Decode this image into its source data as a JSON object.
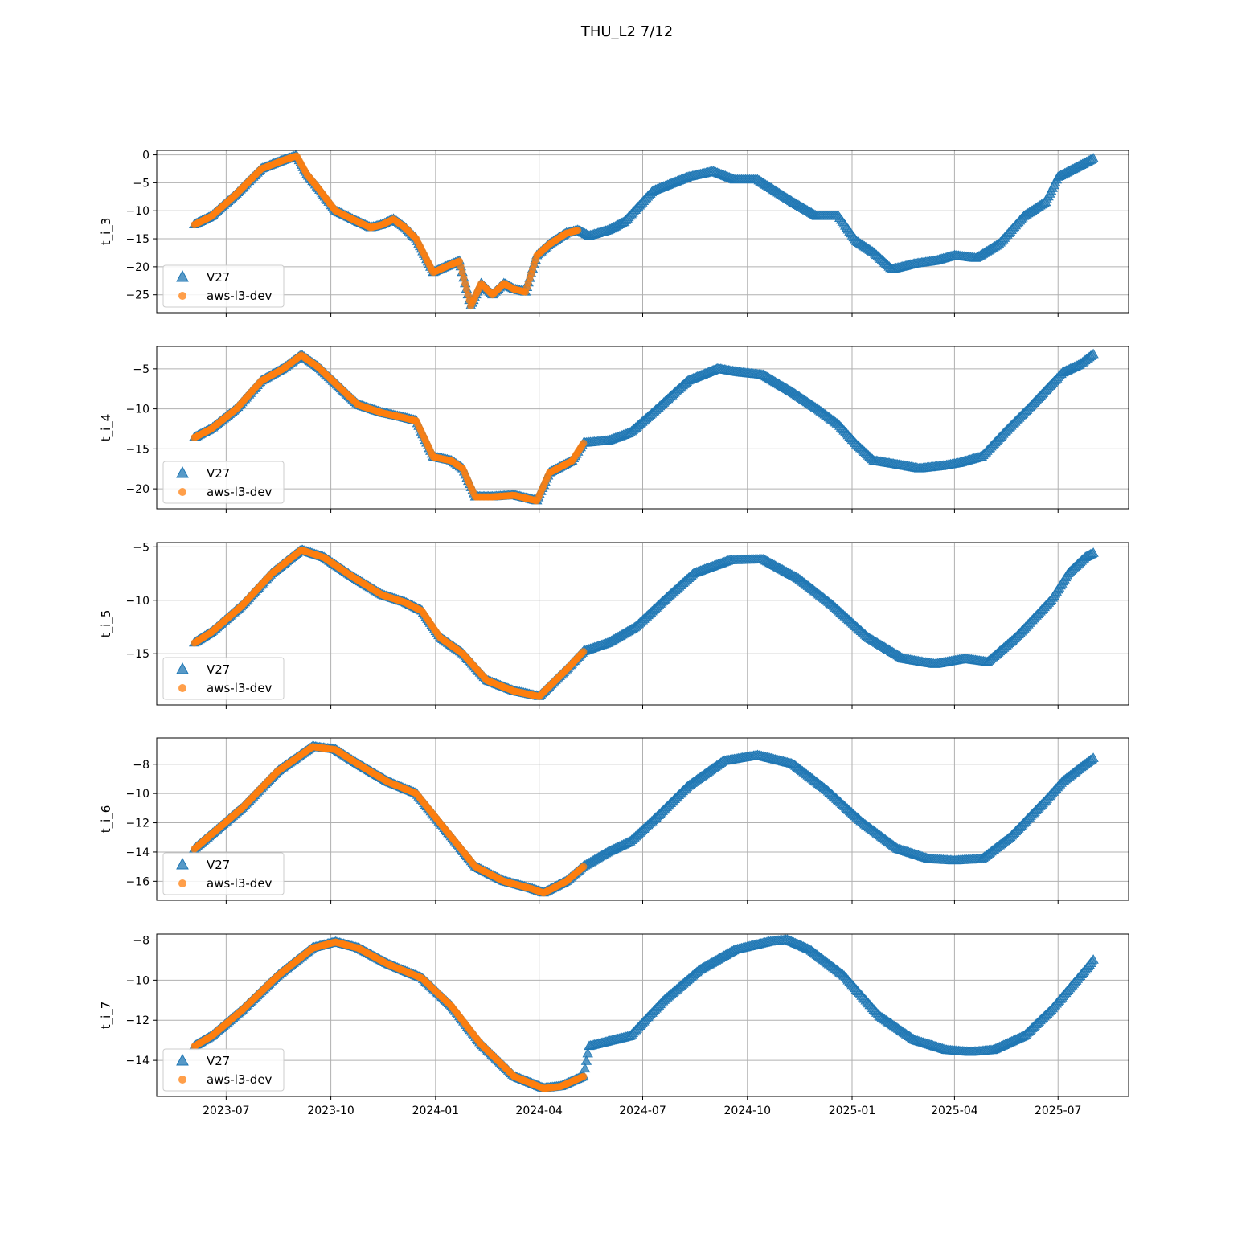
{
  "figure": {
    "title": "THU_L2 7/12"
  },
  "colors": {
    "v27": "#1f77b4",
    "aws": "#ff7f0e"
  },
  "chart_data": {
    "type": "scatter",
    "shared_x": {
      "start": "2023-05-01",
      "end": "2025-09-01",
      "tick_labels": [
        "2023-07",
        "2023-10",
        "2024-01",
        "2024-04",
        "2024-07",
        "2024-10",
        "2025-01",
        "2025-04",
        "2025-07"
      ],
      "tick_dates": [
        "2023-07-01",
        "2023-10-01",
        "2024-01-01",
        "2024-04-01",
        "2024-07-01",
        "2024-10-01",
        "2025-01-01",
        "2025-04-01",
        "2025-07-01"
      ]
    },
    "legend": {
      "placement": "lower-left",
      "entries": [
        "V27",
        "aws-l3-dev"
      ]
    },
    "grid": true,
    "panels": [
      {
        "ylabel": "t_i_3",
        "ylim": [
          -28.2,
          0.8
        ],
        "yticks": [
          0,
          -5,
          -10,
          -15,
          -20,
          -25
        ],
        "series": [
          {
            "name": "V27",
            "marker": "triangle",
            "x": [
              "2023-06-03",
              "2023-06-18",
              "2023-07-10",
              "2023-08-01",
              "2023-08-20",
              "2023-09-01",
              "2023-09-10",
              "2023-09-20",
              "2023-10-05",
              "2023-10-15",
              "2023-10-25",
              "2023-11-05",
              "2023-11-15",
              "2023-11-25",
              "2023-12-05",
              "2023-12-15",
              "2023-12-30",
              "2024-01-10",
              "2024-01-22",
              "2024-02-01",
              "2024-02-10",
              "2024-02-20",
              "2024-03-01",
              "2024-03-10",
              "2024-03-20",
              "2024-03-30",
              "2024-04-10",
              "2024-04-25",
              "2024-05-05",
              "2024-05-15",
              "2024-06-01",
              "2024-06-15",
              "2024-07-10",
              "2024-08-10",
              "2024-09-01",
              "2024-09-20",
              "2024-10-10",
              "2024-11-10",
              "2024-12-01",
              "2024-12-20",
              "2025-01-05",
              "2025-01-20",
              "2025-02-05",
              "2025-02-25",
              "2025-03-15",
              "2025-04-01",
              "2025-04-20",
              "2025-05-10",
              "2025-06-01",
              "2025-06-20",
              "2025-07-01",
              "2025-07-20",
              "2025-08-01"
            ],
            "y": [
              -12.5,
              -11.0,
              -7.0,
              -2.5,
              -1.0,
              -0.2,
              -3.5,
              -6.0,
              -10.0,
              -11.0,
              -12.0,
              -13.0,
              -12.5,
              -11.5,
              -13.0,
              -15.0,
              -21.0,
              -20.0,
              -19.0,
              -27.0,
              -23.0,
              -25.0,
              -23.0,
              -24.0,
              -24.5,
              -18.0,
              -16.0,
              -14.0,
              -13.5,
              -14.5,
              -13.5,
              -12.0,
              -6.5,
              -4.0,
              -3.0,
              -4.5,
              -4.5,
              -8.5,
              -11.0,
              -11.0,
              -15.5,
              -17.5,
              -20.5,
              -19.5,
              -19.0,
              -18.0,
              -18.5,
              -16.0,
              -11.0,
              -8.5,
              -4.0,
              -2.0,
              -0.7
            ]
          },
          {
            "name": "aws-l3-dev",
            "marker": "circle",
            "x": [
              "2023-06-03",
              "2023-06-18",
              "2023-07-10",
              "2023-08-01",
              "2023-08-20",
              "2023-09-01",
              "2023-09-10",
              "2023-09-20",
              "2023-10-05",
              "2023-10-15",
              "2023-10-25",
              "2023-11-05",
              "2023-11-15",
              "2023-11-25",
              "2023-12-05",
              "2023-12-15",
              "2023-12-30",
              "2024-01-10",
              "2024-01-22",
              "2024-02-01",
              "2024-02-10",
              "2024-02-20",
              "2024-03-01",
              "2024-03-10",
              "2024-03-20",
              "2024-03-30",
              "2024-04-10",
              "2024-04-25",
              "2024-05-05"
            ],
            "y": [
              -12.5,
              -11.0,
              -7.0,
              -2.5,
              -1.0,
              -0.2,
              -3.5,
              -6.0,
              -10.0,
              -11.0,
              -12.0,
              -13.0,
              -12.5,
              -11.5,
              -13.0,
              -15.0,
              -21.0,
              -20.0,
              -19.0,
              -27.0,
              -23.0,
              -25.0,
              -23.0,
              -24.0,
              -24.5,
              -18.0,
              -16.0,
              -14.0,
              -13.5
            ]
          }
        ]
      },
      {
        "ylabel": "t_i_4",
        "ylim": [
          -22.5,
          -2.2
        ],
        "yticks": [
          -5,
          -10,
          -15,
          -20
        ],
        "series": [
          {
            "name": "V27",
            "marker": "triangle",
            "x": [
              "2023-06-03",
              "2023-06-18",
              "2023-07-10",
              "2023-08-01",
              "2023-08-20",
              "2023-09-05",
              "2023-09-20",
              "2023-10-10",
              "2023-10-25",
              "2023-11-15",
              "2023-12-01",
              "2023-12-15",
              "2023-12-30",
              "2024-01-15",
              "2024-01-25",
              "2024-02-05",
              "2024-02-20",
              "2024-03-10",
              "2024-03-30",
              "2024-04-10",
              "2024-04-30",
              "2024-05-10",
              "2024-06-01",
              "2024-06-20",
              "2024-07-10",
              "2024-08-10",
              "2024-09-05",
              "2024-09-25",
              "2024-10-15",
              "2024-11-10",
              "2024-12-01",
              "2024-12-20",
              "2025-01-05",
              "2025-01-20",
              "2025-02-10",
              "2025-03-01",
              "2025-03-20",
              "2025-04-05",
              "2025-04-25",
              "2025-05-15",
              "2025-06-05",
              "2025-06-25",
              "2025-07-05",
              "2025-07-20",
              "2025-08-01"
            ],
            "y": [
              -13.6,
              -12.5,
              -10.0,
              -6.5,
              -5.0,
              -3.3,
              -4.8,
              -7.5,
              -9.5,
              -10.5,
              -11.0,
              -11.5,
              -16.0,
              -16.5,
              -17.5,
              -21.0,
              -21.0,
              -20.8,
              -21.5,
              -18.0,
              -16.5,
              -14.3,
              -14.0,
              -13.0,
              -10.5,
              -6.5,
              -5.0,
              -5.5,
              -5.8,
              -8.0,
              -10.0,
              -12.0,
              -14.5,
              -16.5,
              -17.0,
              -17.5,
              -17.2,
              -16.8,
              -16.0,
              -13.0,
              -10.0,
              -7.0,
              -5.5,
              -4.5,
              -3.2
            ]
          },
          {
            "name": "aws-l3-dev",
            "marker": "circle",
            "x": [
              "2023-06-03",
              "2023-06-18",
              "2023-07-10",
              "2023-08-01",
              "2023-08-20",
              "2023-09-05",
              "2023-09-20",
              "2023-10-10",
              "2023-10-25",
              "2023-11-15",
              "2023-12-01",
              "2023-12-15",
              "2023-12-30",
              "2024-01-15",
              "2024-01-25",
              "2024-02-05",
              "2024-02-20",
              "2024-03-10",
              "2024-03-30",
              "2024-04-10",
              "2024-04-30",
              "2024-05-10"
            ],
            "y": [
              -13.6,
              -12.5,
              -10.0,
              -6.5,
              -5.0,
              -3.3,
              -4.8,
              -7.5,
              -9.5,
              -10.5,
              -11.0,
              -11.5,
              -16.0,
              -16.5,
              -17.5,
              -21.0,
              -21.0,
              -20.8,
              -21.5,
              -18.0,
              -16.5,
              -14.3
            ]
          }
        ]
      },
      {
        "ylabel": "t_i_5",
        "ylim": [
          -19.8,
          -4.6
        ],
        "yticks": [
          -5,
          -10,
          -15
        ],
        "series": [
          {
            "name": "V27",
            "marker": "triangle",
            "x": [
              "2023-06-03",
              "2023-06-18",
              "2023-07-15",
              "2023-08-10",
              "2023-09-05",
              "2023-09-25",
              "2023-10-20",
              "2023-11-15",
              "2023-12-05",
              "2023-12-20",
              "2024-01-05",
              "2024-01-25",
              "2024-02-15",
              "2024-03-10",
              "2024-04-01",
              "2024-04-25",
              "2024-05-10",
              "2024-06-01",
              "2024-06-25",
              "2024-07-20",
              "2024-08-15",
              "2024-09-15",
              "2024-10-15",
              "2024-11-15",
              "2024-12-15",
              "2025-01-15",
              "2025-02-15",
              "2025-03-15",
              "2025-04-10",
              "2025-04-30",
              "2025-05-25",
              "2025-06-25",
              "2025-07-10",
              "2025-07-25",
              "2025-08-01"
            ],
            "y": [
              -14.0,
              -13.0,
              -10.5,
              -7.5,
              -5.3,
              -6.0,
              -7.8,
              -9.5,
              -10.2,
              -11.0,
              -13.5,
              -15.0,
              -17.5,
              -18.5,
              -19.0,
              -16.5,
              -14.8,
              -14.0,
              -12.5,
              -10.0,
              -7.5,
              -6.3,
              -6.2,
              -8.0,
              -10.5,
              -13.5,
              -15.5,
              -16.0,
              -15.5,
              -15.8,
              -13.5,
              -10.0,
              -7.5,
              -6.0,
              -5.6
            ]
          },
          {
            "name": "aws-l3-dev",
            "marker": "circle",
            "x": [
              "2023-06-03",
              "2023-06-18",
              "2023-07-15",
              "2023-08-10",
              "2023-09-05",
              "2023-09-25",
              "2023-10-20",
              "2023-11-15",
              "2023-12-05",
              "2023-12-20",
              "2024-01-05",
              "2024-01-25",
              "2024-02-15",
              "2024-03-10",
              "2024-04-01",
              "2024-04-25",
              "2024-05-10"
            ],
            "y": [
              -14.0,
              -13.0,
              -10.5,
              -7.5,
              -5.3,
              -6.0,
              -7.8,
              -9.5,
              -10.2,
              -11.0,
              -13.5,
              -15.0,
              -17.5,
              -18.5,
              -19.0,
              -16.5,
              -14.8
            ]
          }
        ]
      },
      {
        "ylabel": "t_i_6",
        "ylim": [
          -17.3,
          -6.2
        ],
        "yticks": [
          -8,
          -10,
          -12,
          -14,
          -16
        ],
        "series": [
          {
            "name": "V27",
            "marker": "triangle",
            "x": [
              "2023-06-03",
              "2023-06-18",
              "2023-07-15",
              "2023-08-15",
              "2023-09-15",
              "2023-10-05",
              "2023-10-25",
              "2023-11-20",
              "2023-12-15",
              "2024-01-10",
              "2024-02-05",
              "2024-03-01",
              "2024-03-25",
              "2024-04-05",
              "2024-04-25",
              "2024-05-10",
              "2024-06-01",
              "2024-06-20",
              "2024-07-15",
              "2024-08-10",
              "2024-09-10",
              "2024-10-10",
              "2024-11-10",
              "2024-12-10",
              "2025-01-10",
              "2025-02-10",
              "2025-03-10",
              "2025-04-01",
              "2025-04-25",
              "2025-05-20",
              "2025-06-20",
              "2025-07-05",
              "2025-07-20",
              "2025-08-01"
            ],
            "y": [
              -13.8,
              -12.8,
              -11.0,
              -8.5,
              -6.8,
              -7.0,
              -8.0,
              -9.2,
              -10.0,
              -12.5,
              -15.0,
              -16.0,
              -16.5,
              -16.8,
              -16.0,
              -15.0,
              -14.0,
              -13.3,
              -11.5,
              -9.5,
              -7.8,
              -7.4,
              -8.0,
              -9.8,
              -12.0,
              -13.8,
              -14.5,
              -14.6,
              -14.5,
              -13.0,
              -10.5,
              -9.2,
              -8.3,
              -7.6
            ]
          },
          {
            "name": "aws-l3-dev",
            "marker": "circle",
            "x": [
              "2023-06-03",
              "2023-06-18",
              "2023-07-15",
              "2023-08-15",
              "2023-09-15",
              "2023-10-05",
              "2023-10-25",
              "2023-11-20",
              "2023-12-15",
              "2024-01-10",
              "2024-02-05",
              "2024-03-01",
              "2024-03-25",
              "2024-04-05",
              "2024-04-25",
              "2024-05-10"
            ],
            "y": [
              -13.8,
              -12.8,
              -11.0,
              -8.5,
              -6.8,
              -7.0,
              -8.0,
              -9.2,
              -10.0,
              -12.5,
              -15.0,
              -16.0,
              -16.5,
              -16.8,
              -16.0,
              -15.0
            ]
          }
        ]
      },
      {
        "ylabel": "t_i_7",
        "ylim": [
          -15.8,
          -7.7
        ],
        "yticks": [
          -8,
          -10,
          -12,
          -14
        ],
        "series": [
          {
            "name": "V27",
            "marker": "triangle",
            "x": [
              "2023-06-03",
              "2023-06-18",
              "2023-07-15",
              "2023-08-15",
              "2023-09-15",
              "2023-10-05",
              "2023-10-25",
              "2023-11-20",
              "2023-12-20",
              "2024-01-15",
              "2024-02-10",
              "2024-03-10",
              "2024-04-05",
              "2024-04-20",
              "2024-05-10",
              "2024-05-15",
              "2024-06-20",
              "2024-07-20",
              "2024-08-20",
              "2024-09-20",
              "2024-10-20",
              "2024-11-05",
              "2024-11-25",
              "2024-12-25",
              "2025-01-25",
              "2025-02-25",
              "2025-03-25",
              "2025-04-15",
              "2025-05-05",
              "2025-06-01",
              "2025-06-25",
              "2025-07-10",
              "2025-07-25",
              "2025-08-01"
            ],
            "y": [
              -13.3,
              -12.8,
              -11.5,
              -9.8,
              -8.4,
              -8.1,
              -8.4,
              -9.2,
              -9.9,
              -11.3,
              -13.2,
              -14.8,
              -15.4,
              -15.3,
              -14.8,
              -13.3,
              -12.8,
              -11.0,
              -9.5,
              -8.5,
              -8.1,
              -8.0,
              -8.5,
              -9.8,
              -11.8,
              -13.0,
              -13.5,
              -13.6,
              -13.5,
              -12.8,
              -11.5,
              -10.5,
              -9.5,
              -9.0
            ]
          },
          {
            "name": "aws-l3-dev",
            "marker": "circle",
            "x": [
              "2023-06-03",
              "2023-06-18",
              "2023-07-15",
              "2023-08-15",
              "2023-09-15",
              "2023-10-05",
              "2023-10-25",
              "2023-11-20",
              "2023-12-20",
              "2024-01-15",
              "2024-02-10",
              "2024-03-10",
              "2024-04-05",
              "2024-04-20",
              "2024-05-10"
            ],
            "y": [
              -13.3,
              -12.8,
              -11.5,
              -9.8,
              -8.4,
              -8.1,
              -8.4,
              -9.2,
              -9.9,
              -11.3,
              -13.2,
              -14.8,
              -15.4,
              -15.3,
              -14.8
            ]
          }
        ]
      }
    ]
  }
}
